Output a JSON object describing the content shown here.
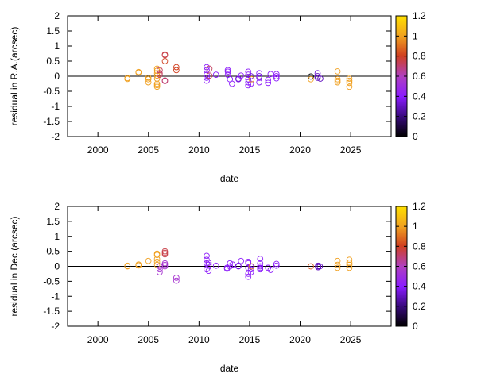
{
  "chart_data": [
    {
      "type": "scatter",
      "xlabel": "date",
      "ylabel": "residual in R.A.(arcsec)",
      "xlim": [
        1997,
        2029
      ],
      "ylim": [
        -2,
        2
      ],
      "xticks": [
        "2000",
        "2005",
        "2010",
        "2015",
        "2020",
        "2025"
      ],
      "yticks": [
        "-2",
        "-1.5",
        "-1",
        "-0.5",
        "0",
        "0.5",
        "1",
        "1.5",
        "2"
      ],
      "colorbar": {
        "range": [
          0,
          1.2
        ],
        "ticks": [
          "0",
          "0.2",
          "0.4",
          "0.6",
          "0.8",
          "1",
          "1.2"
        ]
      },
      "grid": false,
      "zero_line": true,
      "points_format": [
        "date",
        "residual",
        "colour value"
      ],
      "points": [
        [
          2002.92,
          -0.06,
          1.0
        ],
        [
          2002.92,
          -0.09,
          1.0
        ],
        [
          2004.02,
          0.12,
          1.0
        ],
        [
          2004.02,
          0.14,
          1.0
        ],
        [
          2004.99,
          -0.05,
          1.0
        ],
        [
          2004.99,
          -0.1,
          1.0
        ],
        [
          2004.99,
          -0.2,
          1.0
        ],
        [
          2005.85,
          0.25,
          1.0
        ],
        [
          2005.85,
          0.18,
          1.0
        ],
        [
          2005.85,
          0.1,
          1.0
        ],
        [
          2005.85,
          0.02,
          1.0
        ],
        [
          2005.85,
          -0.08,
          1.0
        ],
        [
          2005.85,
          -0.25,
          1.0
        ],
        [
          2005.85,
          -0.3,
          1.0
        ],
        [
          2005.85,
          -0.35,
          1.0
        ],
        [
          2006.11,
          0.2,
          0.72
        ],
        [
          2006.11,
          0.1,
          0.72
        ],
        [
          2006.11,
          0.05,
          0.72
        ],
        [
          2006.63,
          0.72,
          0.75
        ],
        [
          2006.63,
          0.7,
          0.75
        ],
        [
          2006.63,
          0.5,
          0.8
        ],
        [
          2006.63,
          -0.14,
          0.7
        ],
        [
          2006.63,
          -0.16,
          0.7
        ],
        [
          2007.76,
          0.3,
          0.8
        ],
        [
          2007.76,
          0.2,
          0.8
        ],
        [
          2010.76,
          0.3,
          0.42
        ],
        [
          2010.76,
          0.2,
          0.42
        ],
        [
          2010.76,
          0.05,
          0.42
        ],
        [
          2010.76,
          -0.05,
          0.4
        ],
        [
          2010.76,
          -0.15,
          0.42
        ],
        [
          2011.03,
          0.25,
          0.72
        ],
        [
          2011.03,
          0.02,
          0.72
        ],
        [
          2011.68,
          0.05,
          0.42
        ],
        [
          2012.85,
          0.2,
          0.42
        ],
        [
          2012.85,
          0.15,
          0.42
        ],
        [
          2012.85,
          0.05,
          0.42
        ],
        [
          2013.06,
          -0.1,
          0.4
        ],
        [
          2013.27,
          -0.25,
          0.42
        ],
        [
          2013.9,
          -0.08,
          0.35
        ],
        [
          2013.9,
          -0.1,
          0.35
        ],
        [
          2014.16,
          0.02,
          0.42
        ],
        [
          2014.87,
          0.15,
          0.42
        ],
        [
          2014.87,
          0.05,
          0.42
        ],
        [
          2014.87,
          -0.1,
          0.38
        ],
        [
          2014.87,
          -0.2,
          0.4
        ],
        [
          2014.87,
          -0.3,
          0.42
        ],
        [
          2015.13,
          0.0,
          0.35
        ],
        [
          2015.13,
          -0.25,
          0.42
        ],
        [
          2015.2,
          -0.1,
          1.0
        ],
        [
          2015.96,
          0.1,
          0.4
        ],
        [
          2015.96,
          0.0,
          0.35
        ],
        [
          2015.96,
          -0.05,
          0.38
        ],
        [
          2015.96,
          -0.2,
          0.42
        ],
        [
          2016.83,
          -0.12,
          0.42
        ],
        [
          2016.83,
          -0.22,
          0.42
        ],
        [
          2017.08,
          0.07,
          0.42
        ],
        [
          2017.66,
          0.07,
          0.42
        ],
        [
          2017.66,
          0.0,
          0.42
        ],
        [
          2017.66,
          -0.07,
          0.42
        ],
        [
          2021.06,
          -0.01,
          0.0
        ],
        [
          2021.06,
          -0.1,
          1.0
        ],
        [
          2021.73,
          0.1,
          0.32
        ],
        [
          2021.73,
          0.0,
          0.3
        ],
        [
          2021.73,
          -0.05,
          0.3
        ],
        [
          2022.0,
          -0.08,
          0.3
        ],
        [
          2023.7,
          0.16,
          1.0
        ],
        [
          2023.7,
          -0.1,
          1.0
        ],
        [
          2023.7,
          -0.15,
          1.0
        ],
        [
          2023.7,
          -0.2,
          1.0
        ],
        [
          2024.87,
          -0.08,
          1.0
        ],
        [
          2024.87,
          -0.15,
          1.0
        ],
        [
          2024.87,
          -0.22,
          1.0
        ],
        [
          2024.87,
          -0.35,
          1.0
        ]
      ]
    },
    {
      "type": "scatter",
      "xlabel": "date",
      "ylabel": "residual in Dec.(arcsec)",
      "xlim": [
        1997,
        2029
      ],
      "ylim": [
        -2,
        2
      ],
      "xticks": [
        "2000",
        "2005",
        "2010",
        "2015",
        "2020",
        "2025"
      ],
      "yticks": [
        "-2",
        "-1.5",
        "-1",
        "-0.5",
        "0",
        "0.5",
        "1",
        "1.5",
        "2"
      ],
      "colorbar": {
        "range": [
          0,
          1.2
        ],
        "ticks": [
          "0",
          "0.2",
          "0.4",
          "0.6",
          "0.8",
          "1",
          "1.2"
        ]
      },
      "grid": false,
      "zero_line": true,
      "points_format": [
        "date",
        "residual",
        "colour value"
      ],
      "points": [
        [
          2002.92,
          0.02,
          1.0
        ],
        [
          2002.92,
          0.0,
          1.0
        ],
        [
          2004.02,
          0.06,
          1.0
        ],
        [
          2004.02,
          0.03,
          1.0
        ],
        [
          2004.99,
          0.18,
          1.0
        ],
        [
          2005.85,
          0.42,
          1.0
        ],
        [
          2005.85,
          0.38,
          1.0
        ],
        [
          2005.85,
          0.25,
          1.0
        ],
        [
          2005.85,
          0.15,
          1.0
        ],
        [
          2005.85,
          0.05,
          1.0
        ],
        [
          2006.11,
          0.0,
          0.55
        ],
        [
          2006.11,
          -0.1,
          0.55
        ],
        [
          2006.11,
          -0.2,
          0.55
        ],
        [
          2006.63,
          0.5,
          0.75
        ],
        [
          2006.63,
          0.45,
          0.75
        ],
        [
          2006.63,
          0.4,
          0.75
        ],
        [
          2006.63,
          0.1,
          0.55
        ],
        [
          2006.63,
          0.05,
          0.55
        ],
        [
          2006.63,
          0.0,
          0.55
        ],
        [
          2007.76,
          -0.38,
          0.55
        ],
        [
          2007.76,
          -0.48,
          0.55
        ],
        [
          2010.76,
          0.35,
          0.42
        ],
        [
          2010.76,
          0.22,
          0.42
        ],
        [
          2010.76,
          0.1,
          0.42
        ],
        [
          2010.76,
          -0.1,
          0.42
        ],
        [
          2010.95,
          0.12,
          0.45
        ],
        [
          2010.95,
          0.05,
          0.4
        ],
        [
          2010.95,
          -0.15,
          0.42
        ],
        [
          2011.68,
          0.02,
          0.42
        ],
        [
          2012.77,
          -0.05,
          0.42
        ],
        [
          2012.77,
          -0.08,
          0.42
        ],
        [
          2013.06,
          0.1,
          0.42
        ],
        [
          2013.06,
          0.0,
          0.42
        ],
        [
          2013.32,
          0.06,
          0.42
        ],
        [
          2013.9,
          0.02,
          0.35
        ],
        [
          2013.9,
          0.0,
          0.35
        ],
        [
          2014.16,
          0.18,
          0.42
        ],
        [
          2014.87,
          0.15,
          0.42
        ],
        [
          2014.87,
          0.1,
          0.42
        ],
        [
          2014.87,
          -0.05,
          0.38
        ],
        [
          2014.87,
          -0.25,
          0.42
        ],
        [
          2014.87,
          -0.35,
          0.42
        ],
        [
          2015.13,
          0.0,
          0.38
        ],
        [
          2015.13,
          -0.1,
          0.4
        ],
        [
          2015.13,
          -0.2,
          0.42
        ],
        [
          2015.2,
          0.0,
          1.0
        ],
        [
          2016.05,
          0.25,
          0.42
        ],
        [
          2016.05,
          0.1,
          0.42
        ],
        [
          2016.05,
          0.0,
          0.38
        ],
        [
          2016.05,
          -0.05,
          0.4
        ],
        [
          2016.05,
          -0.1,
          0.42
        ],
        [
          2016.83,
          -0.05,
          0.42
        ],
        [
          2017.08,
          -0.12,
          0.42
        ],
        [
          2017.66,
          0.08,
          0.42
        ],
        [
          2017.66,
          0.02,
          0.42
        ],
        [
          2021.06,
          0.0,
          0.85
        ],
        [
          2021.78,
          0.02,
          0.3
        ],
        [
          2021.78,
          0.0,
          0.3
        ],
        [
          2021.78,
          -0.03,
          0.3
        ],
        [
          2021.95,
          0.0,
          0.3
        ],
        [
          2023.7,
          0.18,
          1.0
        ],
        [
          2023.7,
          0.05,
          1.0
        ],
        [
          2023.7,
          -0.05,
          1.0
        ],
        [
          2024.87,
          0.22,
          1.0
        ],
        [
          2024.87,
          0.12,
          1.0
        ],
        [
          2024.87,
          0.05,
          1.0
        ],
        [
          2024.87,
          -0.05,
          1.0
        ]
      ]
    }
  ]
}
